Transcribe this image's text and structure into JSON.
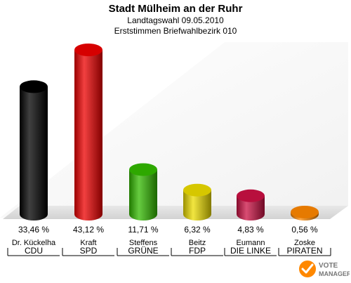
{
  "chart_data": {
    "type": "bar",
    "title": "Stadt Mülheim an der Ruhr",
    "subtitle_1": "Landtagswahl 09.05.2010",
    "subtitle_2": "Erststimmen Briefwahlbezirk 010",
    "categories": [
      "CDU",
      "SPD",
      "GRÜNE",
      "FDP",
      "DIE LINKE",
      "PIRATEN"
    ],
    "candidates": [
      "Dr. Kückelha",
      "Kraft",
      "Steffens",
      "Beitz",
      "Eumann",
      "Zoske"
    ],
    "values": [
      33.46,
      43.12,
      11.71,
      6.32,
      4.83,
      0.56
    ],
    "value_labels": [
      "33,46 %",
      "43,12 %",
      "11,71 %",
      "6,32 %",
      "4,83 %",
      "0,56 %"
    ],
    "colors": [
      "#000000",
      "#ee0000",
      "#33bb00",
      "#eedd00",
      "#cc1144",
      "#ff8800"
    ],
    "ylim": [
      0,
      43.12
    ],
    "grid": false,
    "legend": "none"
  },
  "logo": {
    "text_1": "VOTE",
    "text_2": "MANAGER",
    "color": "#ff8800"
  }
}
